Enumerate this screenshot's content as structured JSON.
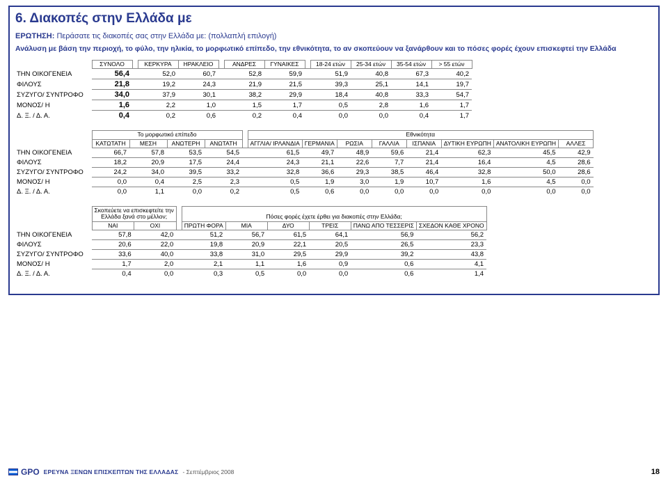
{
  "heading": "6. Διακοπές στην Ελλάδα με",
  "question_label": "ΕΡΩΤΗΣΗ:",
  "question_text": "Περάσατε τις διακοπές σας στην Ελλάδα με: (πολλαπλή επιλογή)",
  "analysis_line": "Ανάλυση με βάση την περιοχή, το φύλο, την ηλικία, το μορφωτικό επίπεδο, την εθνικότητα, το αν σκοπεύουν να ξανάρθουν και το πόσες φορές έχουν επισκεφτεί την Ελλάδα",
  "rows_labels": [
    "ΤΗΝ ΟΙΚΟΓΕΝΕΙΑ",
    "ΦΙΛΟΥΣ",
    "ΣΥΖΥΓΟ/ ΣΥΝΤΡΟΦΟ",
    "ΜΟΝΟΣ/ Η",
    "Δ. Ξ. / Δ. Α."
  ],
  "t1": {
    "headers": [
      "ΣΥΝΟΛΟ",
      "ΚΕΡΚΥΡΑ",
      "ΗΡΑΚΛΕΙΟ",
      "ΑΝΔΡΕΣ",
      "ΓΥΝΑΙΚΕΣ",
      "18-24 ετών",
      "25-34 ετών",
      "35-54 ετών",
      "> 55 ετών"
    ],
    "rows": [
      [
        "56,4",
        "52,0",
        "60,7",
        "52,8",
        "59,9",
        "51,9",
        "40,8",
        "67,3",
        "40,2"
      ],
      [
        "21,8",
        "19,2",
        "24,3",
        "21,9",
        "21,5",
        "39,3",
        "25,1",
        "14,1",
        "19,7"
      ],
      [
        "34,0",
        "37,9",
        "30,1",
        "38,2",
        "29,9",
        "18,4",
        "40,8",
        "33,3",
        "54,7"
      ],
      [
        "1,6",
        "2,2",
        "1,0",
        "1,5",
        "1,7",
        "0,5",
        "2,8",
        "1,6",
        "1,7"
      ],
      [
        "0,4",
        "0,2",
        "0,6",
        "0,2",
        "0,4",
        "0,0",
        "0,0",
        "0,4",
        "1,7"
      ]
    ]
  },
  "t2": {
    "edu_title": "Το μορφωτικό επίπεδο",
    "ethn_title": "Εθνικότητα",
    "edu_headers": [
      "ΚΑΤΩΤΑΤΗ",
      "ΜΕΣΗ",
      "ΑΝΩΤΕΡΗ",
      "ΑΝΩΤΑΤΗ"
    ],
    "ethn_headers": [
      "ΑΓΓΛΙΑ/ ΙΡΛΑΝΔΙΑ",
      "ΓΕΡΜΑΝΙΑ",
      "ΡΩΣΙΑ",
      "ΓΑΛΛΙΑ",
      "ΙΣΠΑΝΙΑ",
      "ΔΥΤΙΚΗ ΕΥΡΩΠΗ",
      "ΑΝΑΤΟΛΙΚΗ ΕΥΡΩΠΗ",
      "ΑΛΛΕΣ"
    ],
    "rows": [
      [
        "66,7",
        "57,8",
        "53,5",
        "54,5",
        "61,5",
        "49,7",
        "48,9",
        "59,6",
        "21,4",
        "62,3",
        "45,5",
        "42,9"
      ],
      [
        "18,2",
        "20,9",
        "17,5",
        "24,4",
        "24,3",
        "21,1",
        "22,6",
        "7,7",
        "21,4",
        "16,4",
        "4,5",
        "28,6"
      ],
      [
        "24,2",
        "34,0",
        "39,5",
        "33,2",
        "32,8",
        "36,6",
        "29,3",
        "38,5",
        "46,4",
        "32,8",
        "50,0",
        "28,6"
      ],
      [
        "0,0",
        "0,4",
        "2,5",
        "2,3",
        "0,5",
        "1,9",
        "3,0",
        "1,9",
        "10,7",
        "1,6",
        "4,5",
        "0,0"
      ],
      [
        "0,0",
        "1,1",
        "0,0",
        "0,2",
        "0,5",
        "0,6",
        "0,0",
        "0,0",
        "0,0",
        "0,0",
        "0,0",
        "0,0"
      ]
    ]
  },
  "t3": {
    "visit_title_l1": "Σκοπεύετε να επισκεφτείτε την",
    "visit_title_l2": "Ελλάδα ξανά στο μέλλον;",
    "visit_headers": [
      "ΝΑΙ",
      "ΟΧΙ"
    ],
    "times_title": "Πόσες φορές έχετε έρθει για διακοπές στην Ελλάδα;",
    "times_headers": [
      "ΠΡΩΤΗ ΦΟΡΑ",
      "ΜΙΑ",
      "ΔΥΟ",
      "ΤΡΕΙΣ",
      "ΠΑΝΩ ΑΠΟ ΤΕΣΣΕΡΙΣ",
      "ΣΧΕΔΟΝ ΚΑΘΕ ΧΡΟΝΟ"
    ],
    "rows": [
      [
        "57,8",
        "42,0",
        "51,2",
        "56,7",
        "61,5",
        "64,1",
        "56,9",
        "56,2"
      ],
      [
        "20,6",
        "22,0",
        "19,8",
        "20,9",
        "22,1",
        "20,5",
        "26,5",
        "23,3"
      ],
      [
        "33,6",
        "40,0",
        "33,8",
        "31,0",
        "29,5",
        "29,9",
        "39,2",
        "43,8"
      ],
      [
        "1,7",
        "2,0",
        "2,1",
        "1,1",
        "1,6",
        "0,9",
        "0,6",
        "4,1"
      ],
      [
        "0,4",
        "0,0",
        "0,3",
        "0,5",
        "0,0",
        "0,0",
        "0,6",
        "1,4"
      ]
    ]
  },
  "footer": {
    "logo_text": "GPO",
    "survey": "ΕΡΕΥΝΑ ΞΕΝΩΝ ΕΠΙΣΚΕΠΤΩΝ ΤΗΣ ΕΛΛΑΔΑΣ",
    "date": "- Σεπτέμβριος 2008",
    "page": "18"
  }
}
